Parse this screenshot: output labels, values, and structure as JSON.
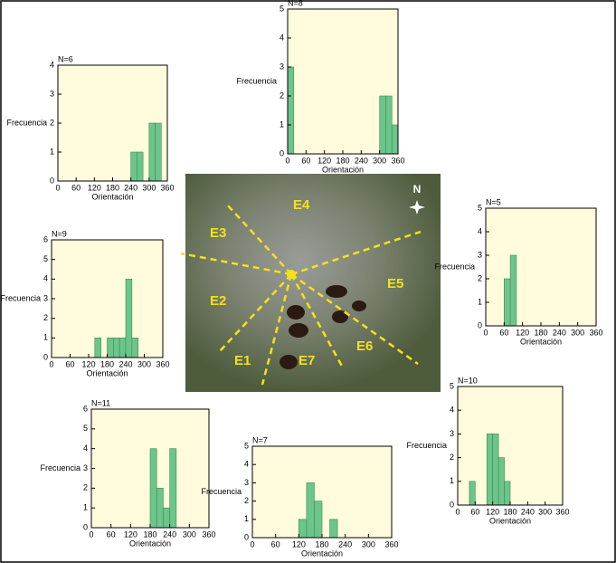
{
  "chart_data": [
    {
      "type": "histogram",
      "title": "N=6",
      "xlabel": "Orientación",
      "ylabel": "Frecuencia",
      "bins": [
        0,
        20,
        40,
        60,
        80,
        100,
        120,
        140,
        160,
        180,
        200,
        220,
        240,
        260,
        280,
        300,
        320,
        340,
        360
      ],
      "values": [
        0,
        0,
        0,
        0,
        0,
        0,
        0,
        0,
        0,
        0,
        0,
        0,
        1,
        1,
        0,
        2,
        2,
        0
      ],
      "xlim": [
        0,
        360
      ],
      "xticks": [
        0,
        60,
        120,
        180,
        240,
        300,
        360
      ],
      "ylim": [
        0,
        4
      ],
      "yticks": [
        0,
        1,
        2,
        3,
        4
      ],
      "color": "#6cc58a"
    },
    {
      "type": "histogram",
      "title": "N=8",
      "xlabel": "Orientación",
      "ylabel": "Frecuencia",
      "bins": [
        0,
        20,
        40,
        60,
        80,
        100,
        120,
        140,
        160,
        180,
        200,
        220,
        240,
        260,
        280,
        300,
        320,
        340,
        360
      ],
      "values": [
        3,
        0,
        0,
        0,
        0,
        0,
        0,
        0,
        0,
        0,
        0,
        0,
        0,
        0,
        0,
        2,
        2,
        1
      ],
      "xlim": [
        0,
        360
      ],
      "xticks": [
        0,
        60,
        120,
        180,
        240,
        300,
        360
      ],
      "ylim": [
        0,
        5
      ],
      "yticks": [
        0,
        1,
        2,
        3,
        4,
        5
      ],
      "color": "#6cc58a"
    },
    {
      "type": "histogram",
      "title": "N=5",
      "xlabel": "Orientación",
      "ylabel": "Frecuencia",
      "bins": [
        0,
        20,
        40,
        60,
        80,
        100,
        120,
        140,
        160,
        180,
        200,
        220,
        240,
        260,
        280,
        300,
        320,
        340,
        360
      ],
      "values": [
        0,
        0,
        0,
        2,
        3,
        0,
        0,
        0,
        0,
        0,
        0,
        0,
        0,
        0,
        0,
        0,
        0,
        0
      ],
      "xlim": [
        0,
        360
      ],
      "xticks": [
        0,
        60,
        120,
        180,
        240,
        300,
        360
      ],
      "ylim": [
        0,
        5
      ],
      "yticks": [
        0,
        1,
        2,
        3,
        4,
        5
      ],
      "color": "#6cc58a"
    },
    {
      "type": "histogram",
      "title": "N=9",
      "xlabel": "Orientación",
      "ylabel": "Frecuencia",
      "bins": [
        0,
        20,
        40,
        60,
        80,
        100,
        120,
        140,
        160,
        180,
        200,
        220,
        240,
        260,
        280,
        300,
        320,
        340,
        360
      ],
      "values": [
        0,
        0,
        0,
        0,
        0,
        0,
        0,
        1,
        0,
        1,
        1,
        1,
        4,
        1,
        0,
        0,
        0,
        0
      ],
      "xlim": [
        0,
        360
      ],
      "xticks": [
        0,
        60,
        120,
        180,
        240,
        300,
        360
      ],
      "ylim": [
        0,
        6
      ],
      "yticks": [
        0,
        1,
        2,
        3,
        4,
        5,
        6
      ],
      "color": "#6cc58a"
    },
    {
      "type": "histogram",
      "title": "N=11",
      "xlabel": "Orientación",
      "ylabel": "Frecuencia",
      "bins": [
        0,
        20,
        40,
        60,
        80,
        100,
        120,
        140,
        160,
        180,
        200,
        220,
        240,
        260,
        280,
        300,
        320,
        340,
        360
      ],
      "values": [
        0,
        0,
        0,
        0,
        0,
        0,
        0,
        0,
        0,
        4,
        2,
        1,
        4,
        0,
        0,
        0,
        0,
        0
      ],
      "xlim": [
        0,
        360
      ],
      "xticks": [
        0,
        60,
        120,
        180,
        240,
        300,
        360
      ],
      "ylim": [
        0,
        6
      ],
      "yticks": [
        0,
        1,
        2,
        3,
        4,
        5,
        6
      ],
      "color": "#6cc58a"
    },
    {
      "type": "histogram",
      "title": "N=7",
      "xlabel": "Orientación",
      "ylabel": "Frecuencia",
      "bins": [
        0,
        20,
        40,
        60,
        80,
        100,
        120,
        140,
        160,
        180,
        200,
        220,
        240,
        260,
        280,
        300,
        320,
        340,
        360
      ],
      "values": [
        0,
        0,
        0,
        0,
        0,
        0,
        1,
        3,
        2,
        0,
        1,
        0,
        0,
        0,
        0,
        0,
        0,
        0
      ],
      "xlim": [
        0,
        360
      ],
      "xticks": [
        0,
        60,
        120,
        180,
        240,
        300,
        360
      ],
      "ylim": [
        0,
        5
      ],
      "yticks": [
        0,
        1,
        2,
        3,
        4,
        5
      ],
      "color": "#6cc58a"
    },
    {
      "type": "histogram",
      "title": "N=10",
      "xlabel": "Orientación",
      "ylabel": "Frecuencia",
      "bins": [
        0,
        20,
        40,
        60,
        80,
        100,
        120,
        140,
        160,
        180,
        200,
        220,
        240,
        260,
        280,
        300,
        320,
        340,
        360
      ],
      "values": [
        0,
        0,
        1,
        0,
        0,
        3,
        3,
        2,
        1,
        0,
        0,
        0,
        0,
        0,
        0,
        0,
        0,
        0
      ],
      "xlim": [
        0,
        360
      ],
      "xticks": [
        0,
        60,
        120,
        180,
        240,
        300,
        360
      ],
      "ylim": [
        0,
        5
      ],
      "yticks": [
        0,
        1,
        2,
        3,
        4,
        5
      ],
      "color": "#6cc58a"
    }
  ],
  "map_labels": {
    "north": "N",
    "sectors": [
      "E1",
      "E2",
      "E3",
      "E4",
      "E5",
      "E6",
      "E7"
    ]
  }
}
